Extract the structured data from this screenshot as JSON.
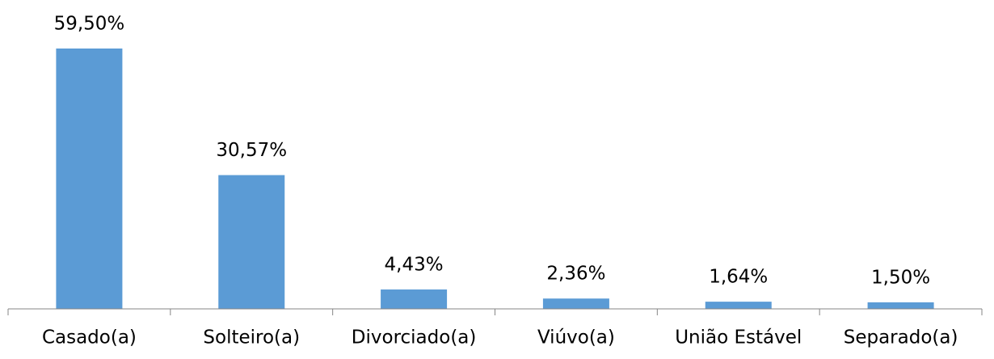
{
  "chart_data": {
    "type": "bar",
    "categories": [
      "Casado(a)",
      "Solteiro(a)",
      "Divorciado(a)",
      "Viúvo(a)",
      "União Estável",
      "Separado(a)"
    ],
    "values": [
      59.5,
      30.57,
      4.43,
      2.36,
      1.64,
      1.5
    ],
    "value_labels": [
      "59,50%",
      "30,57%",
      "4,43%",
      "2,36%",
      "1,64%",
      "1,50%"
    ],
    "color": "#5b9bd5"
  }
}
